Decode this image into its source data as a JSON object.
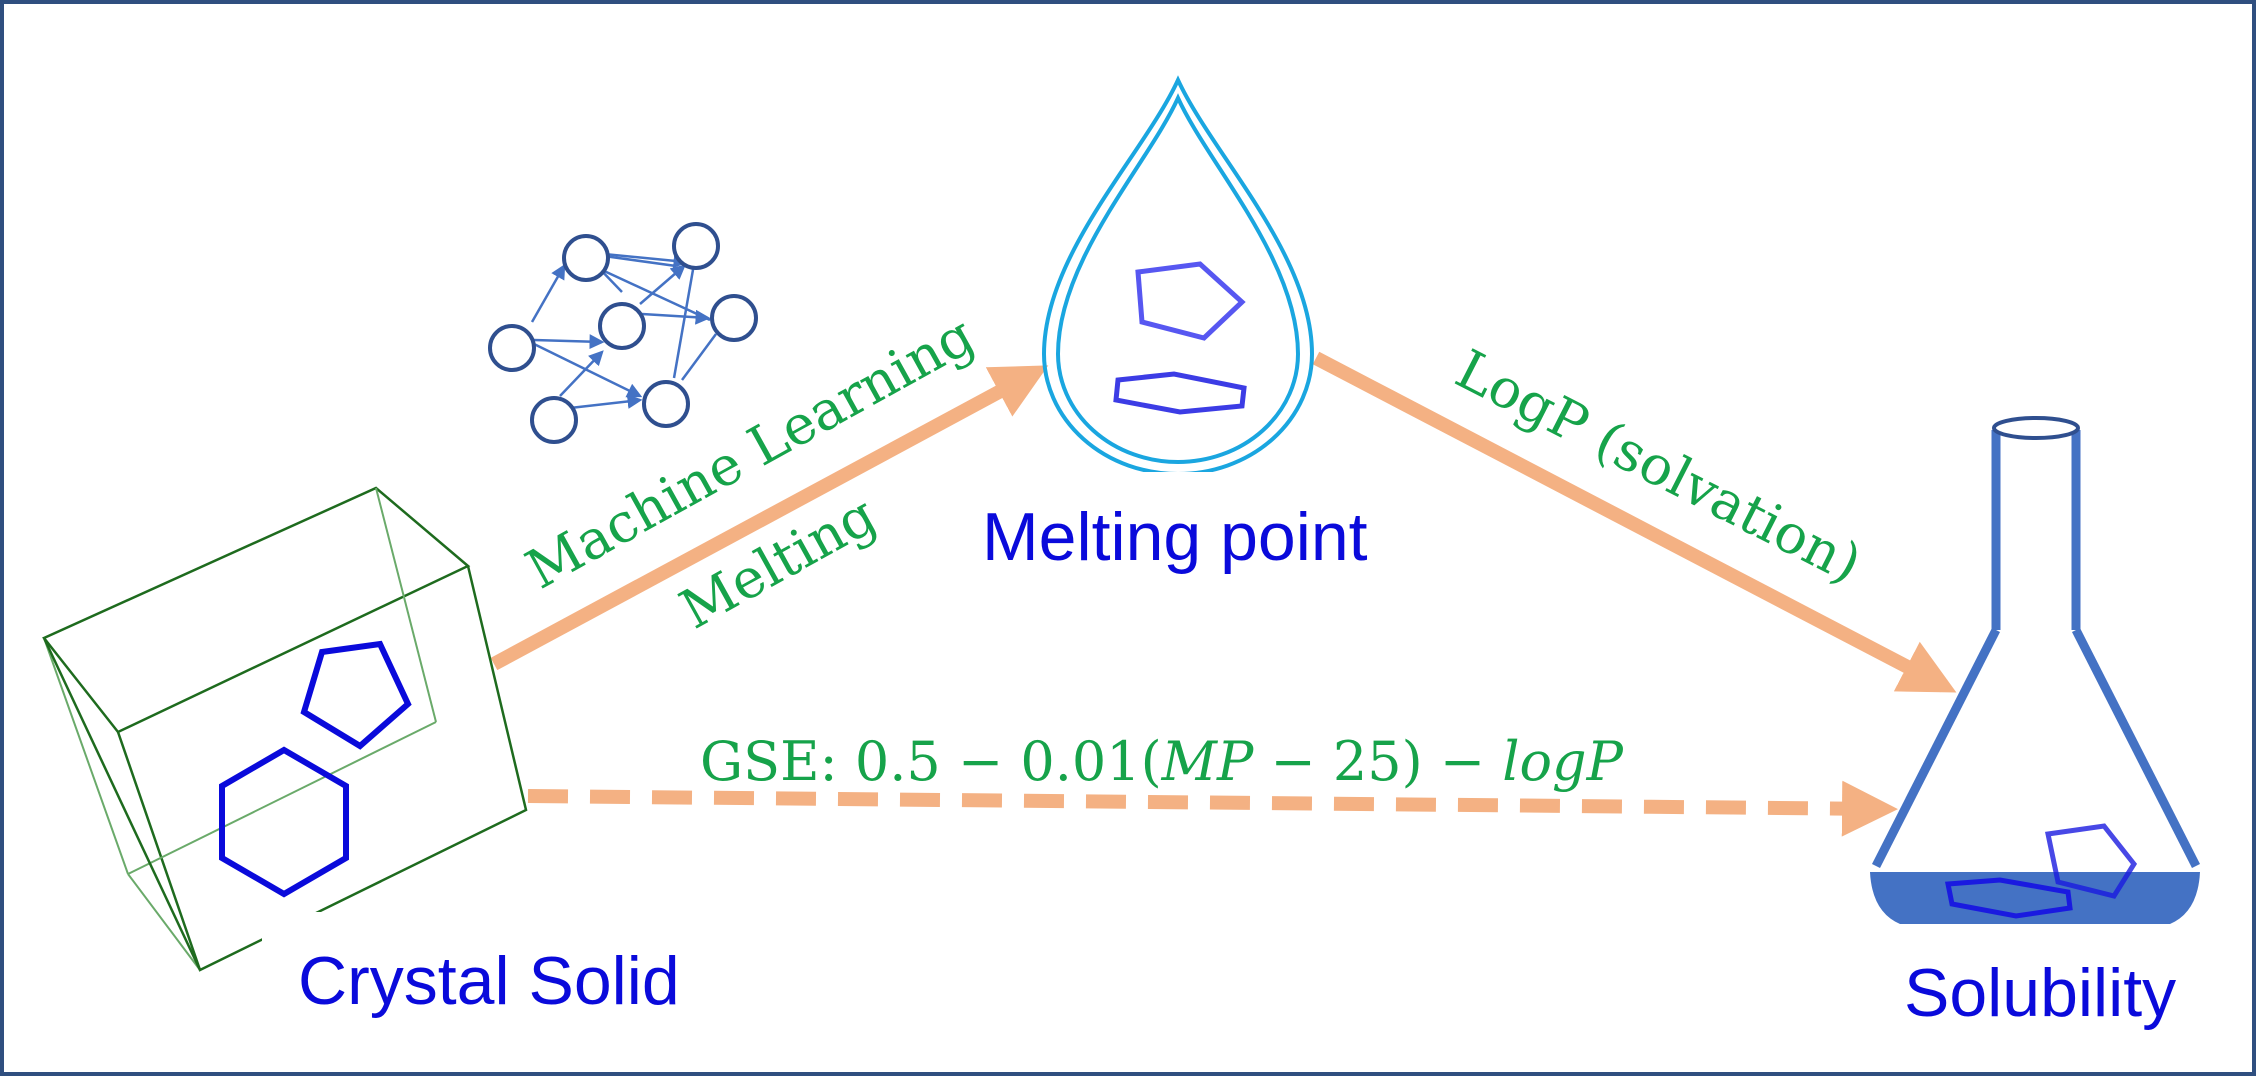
{
  "nodes": {
    "crystal_solid": {
      "label": "Crystal Solid"
    },
    "melting_point": {
      "label": "Melting point"
    },
    "solubility": {
      "label": "Solubility"
    }
  },
  "edges": {
    "machine_learning": {
      "label_line1": "Machine Learning",
      "label_line2": "Melting"
    },
    "logp": {
      "label": "LogP (solvation)"
    },
    "gse": {
      "prefix": "GSE: 0.5 − 0.01(",
      "mp": "MP",
      "mid": " − 25) − ",
      "logp": "logP"
    }
  },
  "colors": {
    "arrow": "#f4b183",
    "node_label": "#0a0adb",
    "edge_label": "#16a34a",
    "crystal_box": "#1e6b1e",
    "drop": "#1aa6e0",
    "flask": "#4472c4",
    "network": "#2f4f8f",
    "frame": "#2f4f7f"
  }
}
